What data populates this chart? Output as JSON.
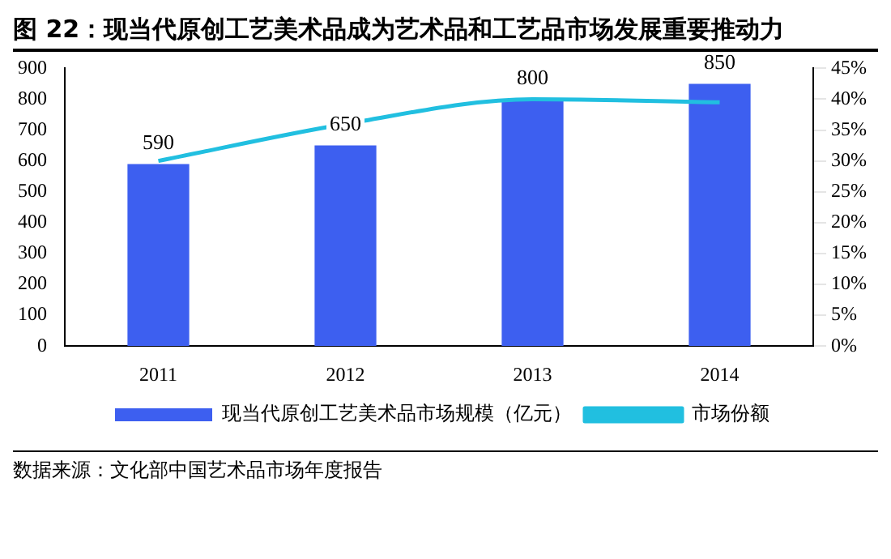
{
  "chart_data": {
    "type": "bar",
    "title": "图 22：现当代原创工艺美术品成为艺术品和工艺品市场发展重要推动力",
    "categories": [
      "2011",
      "2012",
      "2013",
      "2014"
    ],
    "series": [
      {
        "name": "现当代原创工艺美术品市场规模（亿元）",
        "color": "#3d5ff0",
        "values": [
          590,
          650,
          800,
          850
        ],
        "value_labels": [
          "590",
          "650",
          "800",
          "850"
        ]
      },
      {
        "name": "市场份额",
        "type": "line",
        "axis": "y2",
        "color": "#21bfe0",
        "values": [
          30,
          36,
          40,
          39.5
        ]
      }
    ],
    "ylim": [
      0,
      900
    ],
    "yticks": [
      0,
      100,
      200,
      300,
      400,
      500,
      600,
      700,
      800,
      900
    ],
    "y2lim": [
      0,
      45
    ],
    "y2ticks": [
      {
        "value": 0,
        "label": "0%"
      },
      {
        "value": 5,
        "label": "5%"
      },
      {
        "value": 10,
        "label": "10%"
      },
      {
        "value": 15,
        "label": "15%"
      },
      {
        "value": 20,
        "label": "20%"
      },
      {
        "value": 25,
        "label": "25%"
      },
      {
        "value": 30,
        "label": "30%"
      },
      {
        "value": 35,
        "label": "35%"
      },
      {
        "value": 40,
        "label": "40%"
      },
      {
        "value": 45,
        "label": "45%"
      }
    ],
    "grid": false,
    "legend": "bottom",
    "marker": "none",
    "annotations": [
      "数据来源：文化部中国艺术品市场年度报告"
    ]
  }
}
